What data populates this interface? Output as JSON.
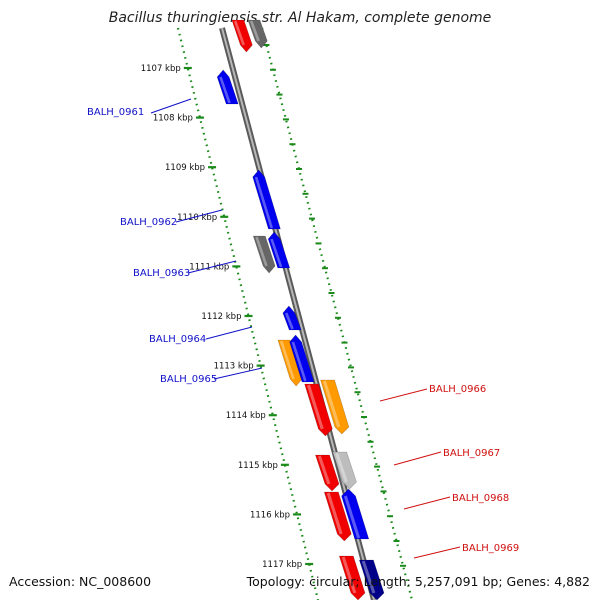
{
  "title": "Bacillus thuringiensis str. Al Hakam, complete genome",
  "accession": "Accession: NC_008600",
  "summary": "Topology: circular; Length: 5,257,091 bp; Genes: 4,882",
  "colors": {
    "backbone": "#808080",
    "tick": "#1a8a1a",
    "red": "#f00000",
    "blue": "#0000ee",
    "orange": "#ff9a00",
    "dark_gray": "#666666",
    "light_gray": "#bdbdbd",
    "navy": "#000088",
    "label_left": "#1010c8",
    "label_right": "#d01010"
  },
  "kbp_labels": [
    "1107 kbp",
    "1108 kbp",
    "1109 kbp",
    "1110 kbp",
    "1111 kbp",
    "1112 kbp",
    "1113 kbp",
    "1114 kbp",
    "1115 kbp",
    "1116 kbp",
    "1117 kbp"
  ],
  "gene_labels_left": [
    "BALH_0961",
    "BALH_0962",
    "BALH_0963",
    "BALH_0964",
    "BALH_0965"
  ],
  "gene_labels_right": [
    "BALH_0966",
    "BALH_0967",
    "BALH_0968",
    "BALH_0969"
  ]
}
